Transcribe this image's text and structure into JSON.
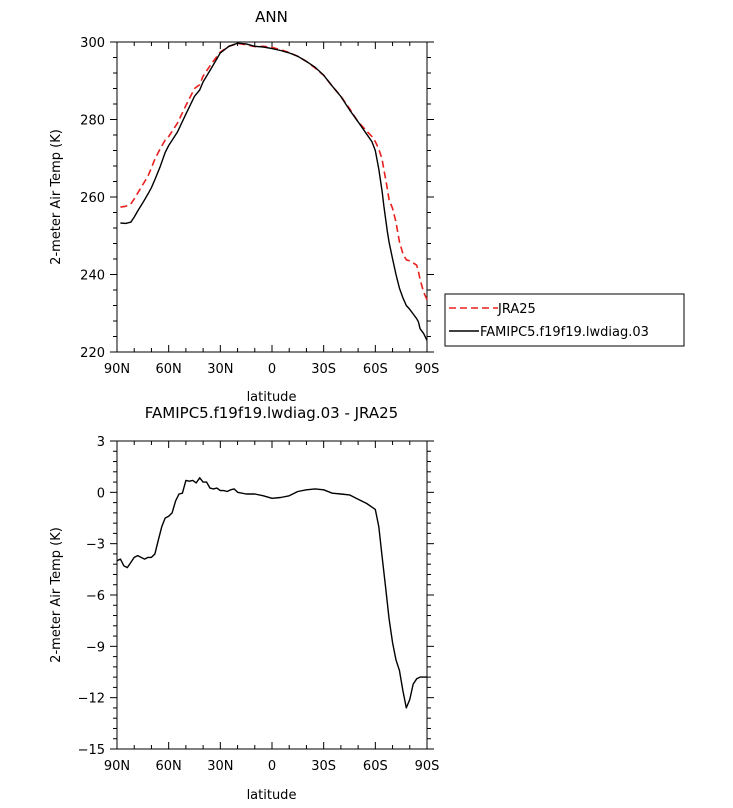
{
  "colors": {
    "model": "#000000",
    "obs": "#e8201e",
    "frame": "#000000",
    "background": "#ffffff"
  },
  "chart_data": [
    {
      "type": "line",
      "title": "ANN",
      "xlabel": "latitude",
      "ylabel": "2-meter Air Temp (K)",
      "xlim": [
        90,
        -90
      ],
      "ylim": [
        220,
        300
      ],
      "x_ticks": [
        90,
        60,
        30,
        0,
        -30,
        -60,
        -90
      ],
      "x_tick_labels": [
        "90N",
        "60N",
        "30N",
        "0",
        "30S",
        "60S",
        "90S"
      ],
      "y_ticks": [
        220,
        240,
        260,
        280,
        300
      ],
      "y_tick_labels": [
        "220",
        "240",
        "260",
        "280",
        "300"
      ],
      "grid": false,
      "legend": "right",
      "x": [
        88,
        85,
        82,
        80,
        78,
        75,
        72,
        70,
        68,
        65,
        62,
        60,
        55,
        50,
        45,
        42,
        40,
        35,
        30,
        25,
        20,
        15,
        10,
        5,
        0,
        -5,
        -10,
        -15,
        -20,
        -25,
        -30,
        -35,
        -40,
        -45,
        -50,
        -55,
        -58,
        -60,
        -62,
        -64,
        -65,
        -66,
        -67,
        -68,
        -70,
        -72,
        -74,
        -76,
        -78,
        -80,
        -82,
        -84,
        -85,
        -86,
        -88,
        -90
      ],
      "series": [
        {
          "name": "JRA25",
          "style": "dashed",
          "color_key": "obs",
          "values": [
            257.4,
            257.6,
            258.2,
            259.5,
            261.0,
            263.2,
            265.4,
            267.5,
            269.8,
            272.4,
            274.7,
            275.6,
            279.0,
            283.6,
            288.0,
            289.0,
            291.2,
            294.5,
            297.4,
            298.9,
            299.6,
            299.3,
            298.8,
            298.9,
            298.6,
            298.0,
            297.3,
            296.3,
            295.0,
            293.3,
            291.4,
            288.6,
            286.0,
            282.8,
            279.4,
            277.0,
            275.6,
            274.3,
            272.4,
            269.6,
            267.0,
            264.6,
            262.0,
            259.3,
            257.0,
            253.5,
            248.5,
            245.4,
            243.8,
            243.5,
            243.0,
            242.4,
            240.8,
            238.7,
            235.5,
            233.5
          ]
        },
        {
          "name": "FAMIPC5.f19f19.lwdiag.03",
          "style": "solid",
          "color_key": "model",
          "values": [
            253.3,
            253.2,
            253.5,
            254.8,
            256.4,
            258.5,
            260.8,
            262.4,
            264.5,
            267.8,
            271.5,
            273.3,
            276.7,
            281.4,
            286.0,
            287.6,
            289.7,
            293.4,
            297.2,
            298.9,
            299.7,
            299.5,
            298.9,
            298.7,
            298.3,
            297.8,
            297.2,
            296.3,
            295.0,
            293.5,
            291.4,
            288.6,
            285.9,
            282.5,
            279.4,
            276.2,
            274.3,
            272.0,
            267.2,
            261.3,
            257.6,
            254.2,
            251.0,
            248.3,
            244.0,
            240.0,
            236.5,
            234.0,
            232.0,
            231.0,
            229.8,
            228.6,
            227.8,
            226.0,
            224.8,
            223.0
          ]
        }
      ]
    },
    {
      "type": "line",
      "title": "FAMIPC5.f19f19.lwdiag.03 - JRA25",
      "xlabel": "latitude",
      "ylabel": "2-meter Air Temp (K)",
      "xlim": [
        90,
        -90
      ],
      "ylim": [
        -15,
        3
      ],
      "x_ticks": [
        90,
        60,
        30,
        0,
        -30,
        -60,
        -90
      ],
      "x_tick_labels": [
        "90N",
        "60N",
        "30N",
        "0",
        "30S",
        "60S",
        "90S"
      ],
      "y_ticks": [
        -15,
        -12,
        -9,
        -6,
        -3,
        0,
        3
      ],
      "y_tick_labels": [
        "−15",
        "−12",
        "−9",
        "−6",
        "−3",
        "0",
        "3"
      ],
      "grid": false,
      "x": [
        90,
        88,
        86,
        84,
        82,
        80,
        78,
        76,
        74,
        72,
        70,
        68,
        66,
        64,
        62,
        60,
        58,
        56,
        54,
        52,
        50,
        48,
        46,
        44,
        42,
        40,
        38,
        36,
        34,
        32,
        30,
        28,
        26,
        24,
        22,
        20,
        15,
        10,
        5,
        0,
        -5,
        -10,
        -15,
        -20,
        -25,
        -30,
        -35,
        -40,
        -45,
        -50,
        -55,
        -60,
        -62,
        -64,
        -66,
        -68,
        -70,
        -72,
        -74,
        -76,
        -78,
        -80,
        -82,
        -84,
        -86,
        -88,
        -90
      ],
      "series": [
        {
          "name": "",
          "style": "solid",
          "color_key": "model",
          "values": [
            -4.0,
            -3.9,
            -4.3,
            -4.4,
            -4.1,
            -3.8,
            -3.7,
            -3.8,
            -3.9,
            -3.8,
            -3.8,
            -3.6,
            -2.8,
            -2.0,
            -1.5,
            -1.4,
            -1.2,
            -0.5,
            -0.1,
            -0.05,
            0.7,
            0.65,
            0.7,
            0.55,
            0.85,
            0.6,
            0.6,
            0.25,
            0.2,
            0.25,
            0.1,
            0.1,
            0.05,
            0.15,
            0.2,
            0.0,
            -0.1,
            -0.1,
            -0.2,
            -0.35,
            -0.3,
            -0.2,
            0.05,
            0.15,
            0.2,
            0.15,
            -0.05,
            -0.1,
            -0.15,
            -0.4,
            -0.65,
            -1.0,
            -2.0,
            -3.8,
            -5.6,
            -7.4,
            -8.8,
            -9.8,
            -10.4,
            -11.6,
            -12.6,
            -12.1,
            -11.2,
            -10.9,
            -10.8,
            -10.8,
            -10.8
          ]
        }
      ]
    }
  ]
}
